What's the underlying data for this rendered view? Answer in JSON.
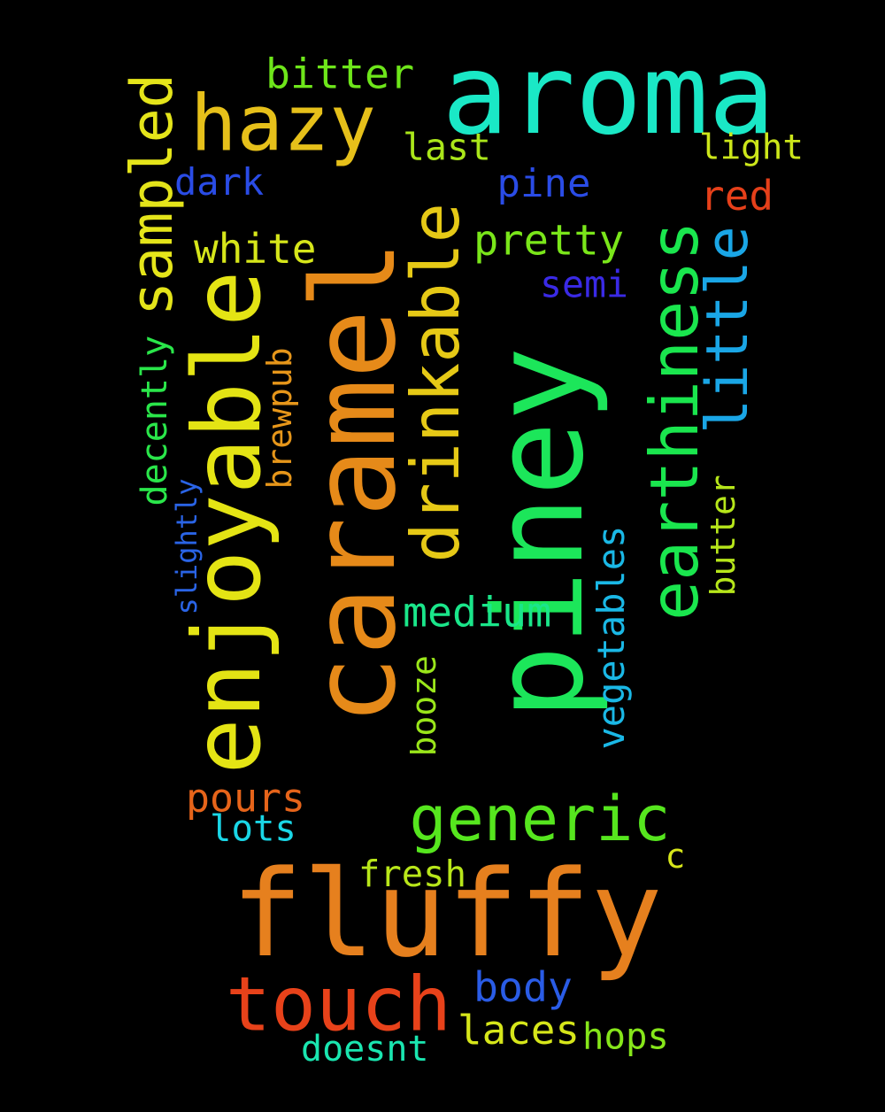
{
  "words": [
    {
      "text": "caramel",
      "color": "#e68a19"
    },
    {
      "text": "piney",
      "color": "#1ce65a"
    },
    {
      "text": "aroma",
      "color": "#1ae8c6"
    },
    {
      "text": "fluffy",
      "color": "#e6801e"
    },
    {
      "text": "enjoyable",
      "color": "#e4e414"
    },
    {
      "text": "earthiness",
      "color": "#1ae64e"
    },
    {
      "text": "drinkable",
      "color": "#e6c916"
    },
    {
      "text": "touch",
      "color": "#e8421a"
    },
    {
      "text": "hazy",
      "color": "#e6c01a"
    },
    {
      "text": "generic",
      "color": "#56e61e"
    },
    {
      "text": "sampled",
      "color": "#e4e41a"
    },
    {
      "text": "little",
      "color": "#1aa6e6"
    },
    {
      "text": "vegetables",
      "color": "#1ab8e6"
    },
    {
      "text": "medium",
      "color": "#1ae68a"
    },
    {
      "text": "pretty",
      "color": "#7ae61a"
    },
    {
      "text": "white",
      "color": "#d6e61a"
    },
    {
      "text": "bitter",
      "color": "#6ee61a"
    },
    {
      "text": "pine",
      "color": "#2a4ce6"
    },
    {
      "text": "body",
      "color": "#2a5ce6"
    },
    {
      "text": "laces",
      "color": "#d6e61a"
    },
    {
      "text": "pours",
      "color": "#e6641a"
    },
    {
      "text": "dark",
      "color": "#2a4ce6"
    },
    {
      "text": "last",
      "color": "#aae61a"
    },
    {
      "text": "light",
      "color": "#cce61a"
    },
    {
      "text": "red",
      "color": "#e6401a"
    },
    {
      "text": "semi",
      "color": "#3a2ae6"
    },
    {
      "text": "decently",
      "color": "#2ae64a"
    },
    {
      "text": "brewpub",
      "color": "#e6961a"
    },
    {
      "text": "fresh",
      "color": "#b8e61a"
    },
    {
      "text": "lots",
      "color": "#1ad6e6"
    },
    {
      "text": "booze",
      "color": "#9ae61a"
    },
    {
      "text": "butter",
      "color": "#b6e61a"
    },
    {
      "text": "hops",
      "color": "#86e61a"
    },
    {
      "text": "doesnt",
      "color": "#1ae6b0"
    },
    {
      "text": "slightly",
      "color": "#2a64e6"
    },
    {
      "text": "c",
      "color": "#d6e61a"
    }
  ]
}
